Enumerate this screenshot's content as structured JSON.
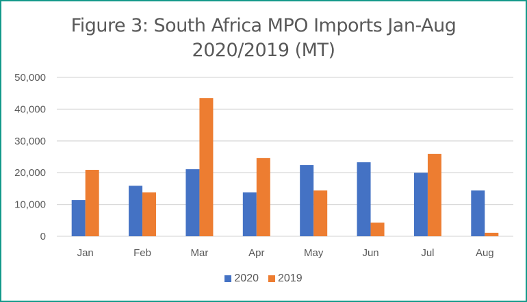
{
  "chart_data": {
    "type": "bar",
    "title": "Figure 3: South Africa MPO Imports Jan-Aug 2020/2019 (MT)",
    "title_lines": [
      "Figure 3: South Africa MPO Imports Jan-Aug",
      "2020/2019 (MT)"
    ],
    "xlabel": "",
    "ylabel": "",
    "categories": [
      "Jan",
      "Feb",
      "Mar",
      "Apr",
      "May",
      "Jun",
      "Jul",
      "Aug"
    ],
    "series": [
      {
        "name": "2020",
        "color": "#4472c4",
        "values": [
          11400,
          15900,
          21100,
          13800,
          22400,
          23300,
          20000,
          14400
        ]
      },
      {
        "name": "2019",
        "color": "#ed7d31",
        "values": [
          20900,
          13800,
          43500,
          24600,
          14400,
          4300,
          25900,
          1100
        ]
      }
    ],
    "ylim": [
      0,
      50000
    ],
    "yticks": [
      0,
      10000,
      20000,
      30000,
      40000,
      50000
    ],
    "ytick_labels": [
      "0",
      "10,000",
      "20,000",
      "30,000",
      "40,000",
      "50,000"
    ],
    "grid": true,
    "legend_position": "bottom"
  },
  "style": {
    "border_color": "#14998a",
    "grid_color": "#d9d9d9"
  }
}
